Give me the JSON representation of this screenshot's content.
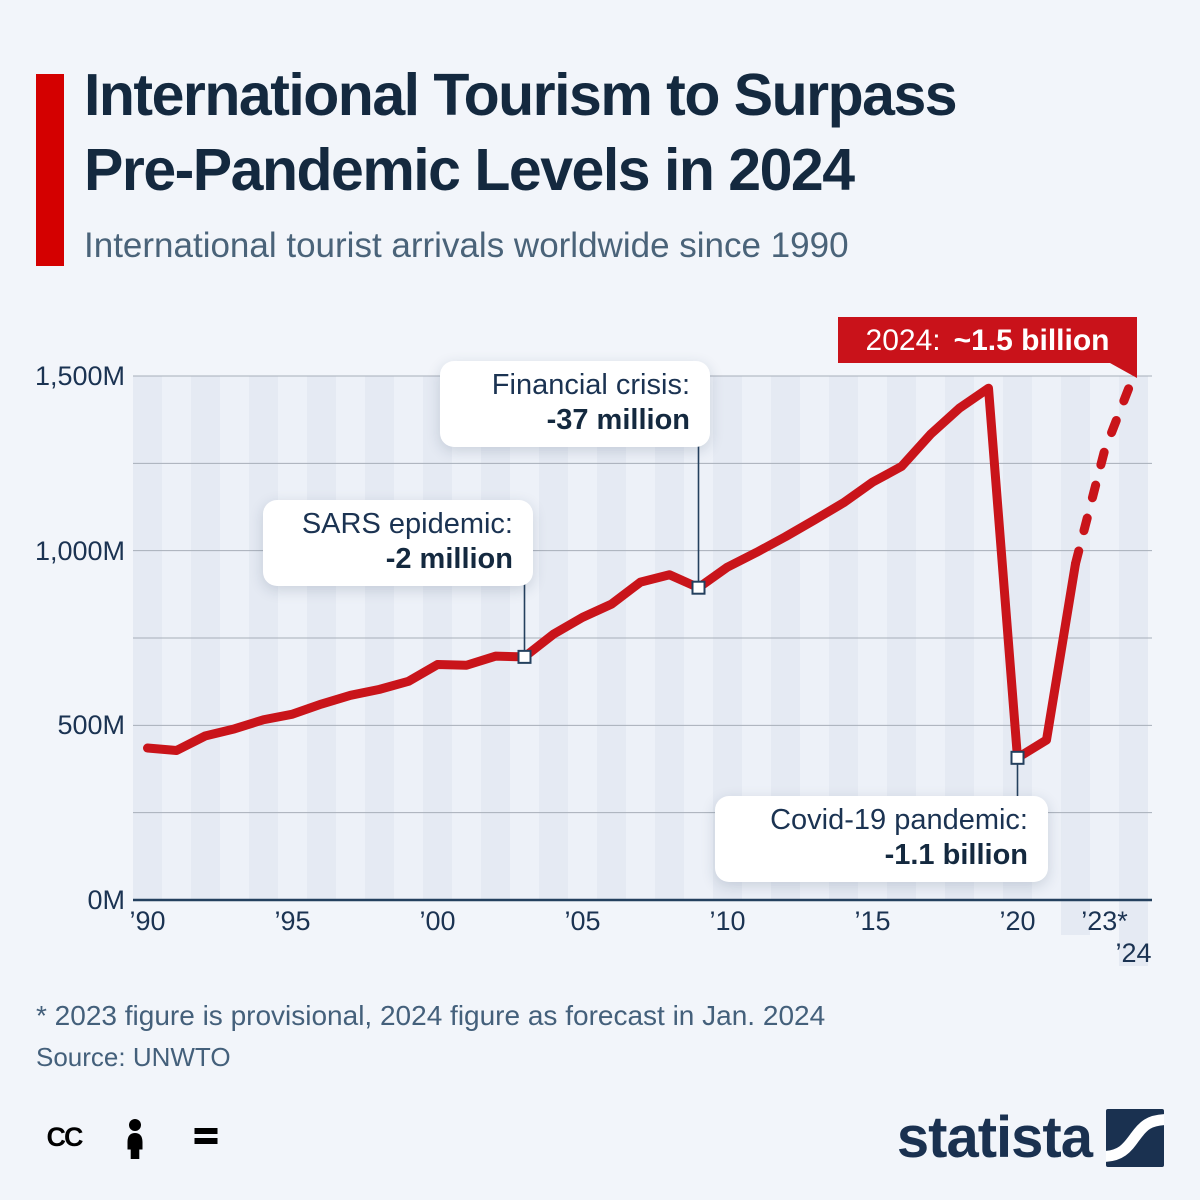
{
  "header": {
    "title_line1": "International Tourism to Surpass",
    "title_line2": "Pre-Pandemic Levels in 2024",
    "subtitle": "International tourist arrivals worldwide since 1990"
  },
  "chart_data": {
    "type": "line",
    "title": "International tourist arrivals worldwide since 1990",
    "unit": "million arrivals",
    "x": [
      1990,
      1991,
      1992,
      1993,
      1994,
      1995,
      1996,
      1997,
      1998,
      1999,
      2000,
      2001,
      2002,
      2003,
      2004,
      2005,
      2006,
      2007,
      2008,
      2009,
      2010,
      2011,
      2012,
      2013,
      2014,
      2015,
      2016,
      2017,
      2018,
      2019,
      2020,
      2021,
      2022,
      2023,
      2024
    ],
    "values": [
      435,
      428,
      470,
      490,
      516,
      532,
      561,
      586,
      603,
      626,
      674,
      672,
      698,
      696,
      761,
      809,
      847,
      910,
      931,
      894,
      953,
      995,
      1040,
      1088,
      1137,
      1196,
      1241,
      1333,
      1408,
      1465,
      407,
      458,
      963,
      1286,
      1500
    ],
    "solid_until_year": 2022,
    "dashed_note": "dashed segment covers 2022-2024 (provisional / forecast)",
    "ylim": [
      0,
      1500
    ],
    "grid_interval": 250,
    "y_ticks": [
      {
        "label": "1,500M",
        "value": 1500
      },
      {
        "label": "1,000M",
        "value": 1000
      },
      {
        "label": "500M",
        "value": 500
      },
      {
        "label": "0M",
        "value": 0
      }
    ],
    "x_ticks": [
      {
        "label": "’90",
        "year": 1990,
        "row": 1
      },
      {
        "label": "’95",
        "year": 1995,
        "row": 1
      },
      {
        "label": "’00",
        "year": 2000,
        "row": 1
      },
      {
        "label": "’05",
        "year": 2005,
        "row": 1
      },
      {
        "label": "’10",
        "year": 2010,
        "row": 1
      },
      {
        "label": "’15",
        "year": 2015,
        "row": 1
      },
      {
        "label": "’20",
        "year": 2020,
        "row": 1
      },
      {
        "label": "’23*",
        "year": 2023,
        "row": 1
      },
      {
        "label": "’24",
        "year": 2024,
        "row": 2
      }
    ],
    "annotations": [
      {
        "id": "sars",
        "year": 2003,
        "line1": "SARS epidemic:",
        "line2": "-2 million"
      },
      {
        "id": "financial",
        "year": 2009,
        "line1": "Financial crisis:",
        "line2": "-37 million"
      },
      {
        "id": "covid",
        "year": 2020,
        "line1": "Covid-19 pandemic:",
        "line2": "-1.1 billion"
      }
    ],
    "callout": {
      "label": "2024:",
      "value": "~1.5 billion"
    }
  },
  "footnote": "* 2023 figure is provisional, 2024 figure as forecast in Jan. 2024",
  "source": "Source: UNWTO",
  "footer": {
    "brand": "statista",
    "license_icons": [
      "cc-icon",
      "cc-by-person-icon",
      "cc-nd-equals-icon"
    ]
  },
  "colors": {
    "page_bg": "#f2f5fa",
    "accent_red": "#d40000",
    "line_red": "#c9141a",
    "callout_red": "#c9121a",
    "navy": "#14293f",
    "subtitle_gray": "#4a6379",
    "tick": "#1b3352",
    "gridline": "#a7aeb9",
    "axis": "#24405e",
    "band_dark": "#e5eaf3",
    "band_light": "#edf1f8",
    "footnote": "#44607b",
    "cc_icon": "#c3ccd7",
    "logo_navy": "#1a3150"
  }
}
